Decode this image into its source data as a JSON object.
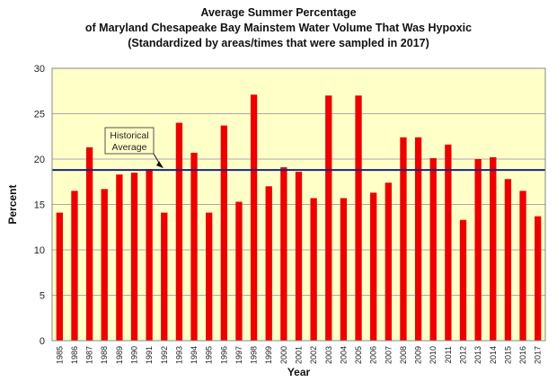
{
  "chart_data": {
    "type": "bar",
    "title_lines": [
      "Average Summer Percentage",
      "of Maryland Chesapeake Bay Mainstem Water Volume That Was Hypoxic",
      "(Standardized by areas/times that were sampled in 2017)"
    ],
    "xlabel": "Year",
    "ylabel": "Percent",
    "ylim": [
      0,
      30
    ],
    "yticks": [
      0,
      5,
      10,
      15,
      20,
      25,
      30
    ],
    "categories": [
      "1985",
      "1986",
      "1987",
      "1988",
      "1989",
      "1990",
      "1991",
      "1992",
      "1993",
      "1994",
      "1995",
      "1996",
      "1997",
      "1998",
      "1999",
      "2000",
      "2001",
      "2002",
      "2003",
      "2004",
      "2005",
      "2006",
      "2007",
      "2008",
      "2009",
      "2010",
      "2011",
      "2012",
      "2013",
      "2014",
      "2015",
      "2016",
      "2017"
    ],
    "values": [
      14.1,
      16.5,
      21.3,
      16.7,
      18.3,
      18.5,
      18.9,
      14.1,
      24.0,
      20.7,
      14.1,
      23.7,
      15.3,
      27.1,
      17.0,
      19.1,
      18.6,
      15.7,
      27.0,
      15.7,
      27.0,
      16.3,
      17.4,
      22.4,
      22.4,
      20.1,
      21.6,
      13.3,
      20.0,
      20.2,
      17.8,
      16.5,
      13.7
    ],
    "historical_average": 18.8,
    "annotation": {
      "line1": "Historical",
      "line2": "Average"
    },
    "grid": "horizontal",
    "legend": "none",
    "colors": {
      "bar": "#ee0000",
      "plot_bg": "#ffffc8",
      "average_line": "#1a237e",
      "grid": "#aaaaaa"
    }
  }
}
